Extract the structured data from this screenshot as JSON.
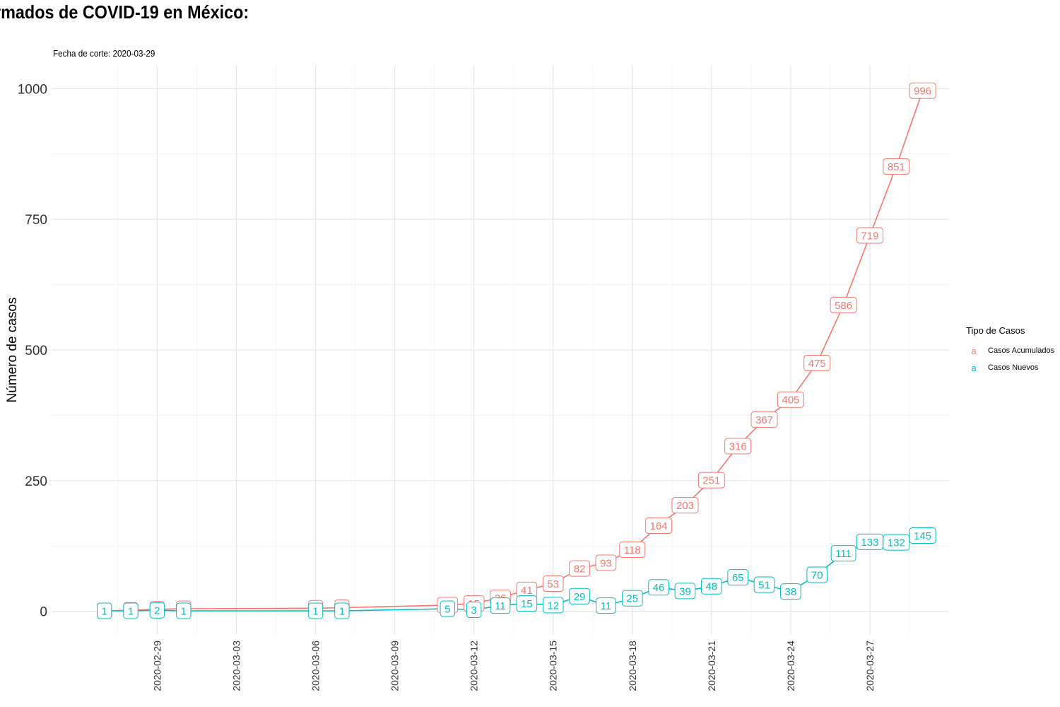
{
  "chart_data": {
    "type": "line",
    "title": "rmados de COVID-19 en México:",
    "subtitle": "Fecha de corte: 2020-03-29",
    "xlabel": "",
    "ylabel": "Número de casos",
    "ylim": [
      -45,
      1045
    ],
    "yticks": [
      0,
      250,
      500,
      750,
      1000
    ],
    "xlim": [
      "2020-02-25",
      "2020-03-30"
    ],
    "xticks": [
      "2020-02-29",
      "2020-03-03",
      "2020-03-06",
      "2020-03-09",
      "2020-03-12",
      "2020-03-15",
      "2020-03-18",
      "2020-03-21",
      "2020-03-24",
      "2020-03-27"
    ],
    "grid": true,
    "legend": {
      "title": "Tipo de Casos",
      "position": "right"
    },
    "series": [
      {
        "name": "Casos Acumulados",
        "color": "#F8766D",
        "points": [
          {
            "x": "2020-02-27",
            "y": 1
          },
          {
            "x": "2020-02-28",
            "y": 2
          },
          {
            "x": "2020-02-29",
            "y": 4
          },
          {
            "x": "2020-03-01",
            "y": 5
          },
          {
            "x": "2020-03-06",
            "y": 6
          },
          {
            "x": "2020-03-07",
            "y": 7
          },
          {
            "x": "2020-03-11",
            "y": 12
          },
          {
            "x": "2020-03-12",
            "y": 15
          },
          {
            "x": "2020-03-13",
            "y": 26
          },
          {
            "x": "2020-03-14",
            "y": 41
          },
          {
            "x": "2020-03-15",
            "y": 53
          },
          {
            "x": "2020-03-16",
            "y": 82
          },
          {
            "x": "2020-03-17",
            "y": 93
          },
          {
            "x": "2020-03-18",
            "y": 118
          },
          {
            "x": "2020-03-19",
            "y": 164
          },
          {
            "x": "2020-03-20",
            "y": 203
          },
          {
            "x": "2020-03-21",
            "y": 251
          },
          {
            "x": "2020-03-22",
            "y": 316
          },
          {
            "x": "2020-03-23",
            "y": 367
          },
          {
            "x": "2020-03-24",
            "y": 405
          },
          {
            "x": "2020-03-25",
            "y": 475
          },
          {
            "x": "2020-03-26",
            "y": 586
          },
          {
            "x": "2020-03-27",
            "y": 719
          },
          {
            "x": "2020-03-28",
            "y": 851
          },
          {
            "x": "2020-03-29",
            "y": 996
          }
        ]
      },
      {
        "name": "Casos Nuevos",
        "color": "#00BFC4",
        "points": [
          {
            "x": "2020-02-27",
            "y": 1
          },
          {
            "x": "2020-02-28",
            "y": 1
          },
          {
            "x": "2020-02-29",
            "y": 2
          },
          {
            "x": "2020-03-01",
            "y": 1
          },
          {
            "x": "2020-03-06",
            "y": 1
          },
          {
            "x": "2020-03-07",
            "y": 1
          },
          {
            "x": "2020-03-11",
            "y": 5
          },
          {
            "x": "2020-03-12",
            "y": 3
          },
          {
            "x": "2020-03-13",
            "y": 11
          },
          {
            "x": "2020-03-14",
            "y": 15
          },
          {
            "x": "2020-03-15",
            "y": 12
          },
          {
            "x": "2020-03-16",
            "y": 29
          },
          {
            "x": "2020-03-17",
            "y": 11
          },
          {
            "x": "2020-03-18",
            "y": 25
          },
          {
            "x": "2020-03-19",
            "y": 46
          },
          {
            "x": "2020-03-20",
            "y": 39
          },
          {
            "x": "2020-03-21",
            "y": 48
          },
          {
            "x": "2020-03-22",
            "y": 65
          },
          {
            "x": "2020-03-23",
            "y": 51
          },
          {
            "x": "2020-03-24",
            "y": 38
          },
          {
            "x": "2020-03-25",
            "y": 70
          },
          {
            "x": "2020-03-26",
            "y": 111
          },
          {
            "x": "2020-03-27",
            "y": 133
          },
          {
            "x": "2020-03-28",
            "y": 132
          },
          {
            "x": "2020-03-29",
            "y": 145
          }
        ]
      }
    ]
  },
  "legend_key_glyph": "a"
}
